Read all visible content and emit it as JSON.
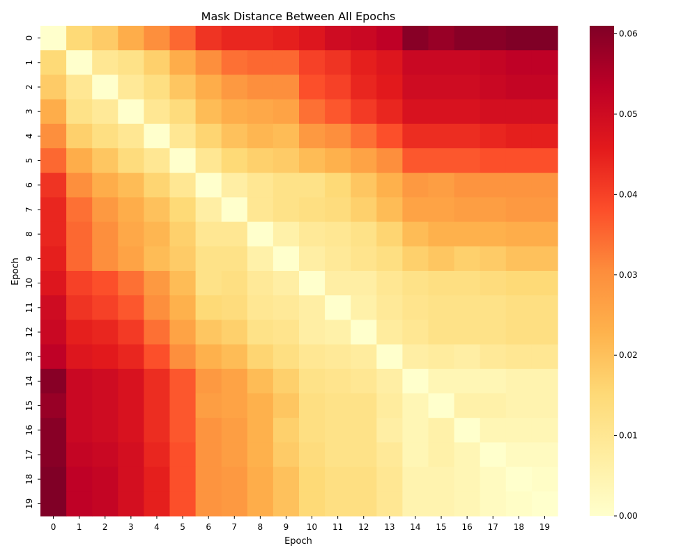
{
  "chart_data": {
    "type": "heatmap",
    "title": "Mask Distance Between All Epochs",
    "xlabel": "Epoch",
    "ylabel": "Epoch",
    "x_ticks": [
      "0",
      "1",
      "2",
      "3",
      "4",
      "5",
      "6",
      "7",
      "8",
      "9",
      "10",
      "11",
      "12",
      "13",
      "14",
      "15",
      "16",
      "17",
      "18",
      "19"
    ],
    "y_ticks": [
      "0",
      "1",
      "2",
      "3",
      "4",
      "5",
      "6",
      "7",
      "8",
      "9",
      "10",
      "11",
      "12",
      "13",
      "14",
      "15",
      "16",
      "17",
      "18",
      "19"
    ],
    "colorbar": {
      "min": 0.0,
      "max": 0.061,
      "ticks": [
        "0.00",
        "0.01",
        "0.02",
        "0.03",
        "0.04",
        "0.05",
        "0.06"
      ],
      "colormap": "YlOrRd",
      "colors": [
        "#ffffcc",
        "#ffeda0",
        "#fed976",
        "#feb24c",
        "#fd8d3c",
        "#fc4e2a",
        "#e31a1c",
        "#bd0026",
        "#800026"
      ]
    },
    "matrix": [
      [
        0.0,
        0.015,
        0.018,
        0.024,
        0.03,
        0.035,
        0.042,
        0.044,
        0.044,
        0.045,
        0.047,
        0.05,
        0.051,
        0.053,
        0.06,
        0.058,
        0.06,
        0.06,
        0.061,
        0.061
      ],
      [
        0.015,
        0.0,
        0.01,
        0.012,
        0.017,
        0.024,
        0.03,
        0.034,
        0.035,
        0.035,
        0.04,
        0.042,
        0.045,
        0.047,
        0.051,
        0.051,
        0.051,
        0.052,
        0.053,
        0.053
      ],
      [
        0.018,
        0.01,
        0.0,
        0.009,
        0.013,
        0.019,
        0.024,
        0.028,
        0.03,
        0.03,
        0.038,
        0.04,
        0.044,
        0.046,
        0.05,
        0.05,
        0.05,
        0.051,
        0.052,
        0.052
      ],
      [
        0.024,
        0.012,
        0.009,
        0.0,
        0.01,
        0.014,
        0.021,
        0.024,
        0.025,
        0.026,
        0.034,
        0.037,
        0.041,
        0.044,
        0.048,
        0.048,
        0.048,
        0.049,
        0.049,
        0.049
      ],
      [
        0.03,
        0.017,
        0.013,
        0.01,
        0.0,
        0.01,
        0.016,
        0.02,
        0.022,
        0.021,
        0.028,
        0.03,
        0.034,
        0.038,
        0.043,
        0.043,
        0.043,
        0.044,
        0.045,
        0.045
      ],
      [
        0.035,
        0.024,
        0.019,
        0.014,
        0.01,
        0.0,
        0.01,
        0.015,
        0.017,
        0.018,
        0.021,
        0.023,
        0.026,
        0.03,
        0.037,
        0.037,
        0.037,
        0.038,
        0.038,
        0.038
      ],
      [
        0.042,
        0.03,
        0.024,
        0.021,
        0.016,
        0.01,
        0.0,
        0.007,
        0.01,
        0.012,
        0.012,
        0.015,
        0.019,
        0.023,
        0.028,
        0.027,
        0.029,
        0.029,
        0.029,
        0.029
      ],
      [
        0.044,
        0.034,
        0.028,
        0.024,
        0.02,
        0.015,
        0.007,
        0.0,
        0.01,
        0.012,
        0.013,
        0.014,
        0.017,
        0.021,
        0.026,
        0.026,
        0.027,
        0.027,
        0.028,
        0.028
      ],
      [
        0.044,
        0.035,
        0.03,
        0.025,
        0.022,
        0.017,
        0.01,
        0.01,
        0.0,
        0.006,
        0.009,
        0.01,
        0.012,
        0.016,
        0.021,
        0.023,
        0.023,
        0.023,
        0.024,
        0.024
      ],
      [
        0.045,
        0.035,
        0.03,
        0.026,
        0.021,
        0.018,
        0.012,
        0.012,
        0.006,
        0.0,
        0.007,
        0.009,
        0.011,
        0.013,
        0.017,
        0.019,
        0.017,
        0.018,
        0.02,
        0.02
      ],
      [
        0.047,
        0.04,
        0.038,
        0.034,
        0.028,
        0.021,
        0.012,
        0.013,
        0.009,
        0.007,
        0.0,
        0.007,
        0.007,
        0.01,
        0.012,
        0.013,
        0.013,
        0.014,
        0.015,
        0.015
      ],
      [
        0.05,
        0.042,
        0.04,
        0.037,
        0.03,
        0.023,
        0.015,
        0.014,
        0.01,
        0.009,
        0.007,
        0.0,
        0.006,
        0.009,
        0.011,
        0.012,
        0.012,
        0.012,
        0.013,
        0.013
      ],
      [
        0.051,
        0.045,
        0.044,
        0.041,
        0.034,
        0.026,
        0.019,
        0.017,
        0.012,
        0.011,
        0.007,
        0.006,
        0.0,
        0.008,
        0.01,
        0.012,
        0.012,
        0.012,
        0.013,
        0.013
      ],
      [
        0.053,
        0.047,
        0.046,
        0.044,
        0.038,
        0.03,
        0.023,
        0.021,
        0.016,
        0.013,
        0.01,
        0.009,
        0.008,
        0.0,
        0.007,
        0.008,
        0.007,
        0.009,
        0.01,
        0.01
      ],
      [
        0.06,
        0.051,
        0.05,
        0.048,
        0.043,
        0.037,
        0.028,
        0.026,
        0.021,
        0.017,
        0.012,
        0.011,
        0.01,
        0.007,
        0.0,
        0.004,
        0.004,
        0.004,
        0.005,
        0.005
      ],
      [
        0.058,
        0.051,
        0.05,
        0.048,
        0.043,
        0.037,
        0.027,
        0.026,
        0.023,
        0.019,
        0.013,
        0.012,
        0.012,
        0.008,
        0.004,
        0.0,
        0.006,
        0.006,
        0.005,
        0.005
      ],
      [
        0.06,
        0.051,
        0.05,
        0.048,
        0.043,
        0.037,
        0.029,
        0.027,
        0.023,
        0.017,
        0.013,
        0.012,
        0.012,
        0.007,
        0.004,
        0.006,
        0.0,
        0.004,
        0.004,
        0.004
      ],
      [
        0.06,
        0.052,
        0.051,
        0.049,
        0.044,
        0.038,
        0.029,
        0.027,
        0.023,
        0.018,
        0.014,
        0.012,
        0.012,
        0.009,
        0.004,
        0.006,
        0.004,
        0.0,
        0.002,
        0.002
      ],
      [
        0.061,
        0.053,
        0.052,
        0.049,
        0.045,
        0.038,
        0.029,
        0.028,
        0.024,
        0.02,
        0.015,
        0.013,
        0.013,
        0.01,
        0.005,
        0.005,
        0.004,
        0.002,
        0.0,
        0.001
      ],
      [
        0.061,
        0.053,
        0.052,
        0.049,
        0.045,
        0.038,
        0.029,
        0.028,
        0.024,
        0.02,
        0.015,
        0.013,
        0.013,
        0.01,
        0.005,
        0.005,
        0.004,
        0.002,
        0.001,
        0.0
      ]
    ]
  }
}
